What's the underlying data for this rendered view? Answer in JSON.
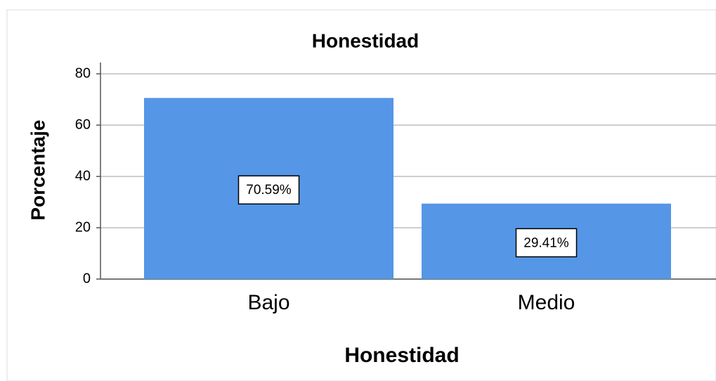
{
  "chart_data": {
    "type": "bar",
    "title": "Honestidad",
    "x_label": "Honestidad",
    "y_label": "Porcentaje",
    "categories": [
      "Bajo",
      "Medio"
    ],
    "values": [
      70.59,
      29.41
    ],
    "value_labels": [
      "70.59%",
      "29.41%"
    ],
    "color": "#5596e6",
    "ylim": [
      0,
      80
    ],
    "yticks": [
      0,
      20,
      40,
      60,
      80
    ],
    "grid": true
  }
}
